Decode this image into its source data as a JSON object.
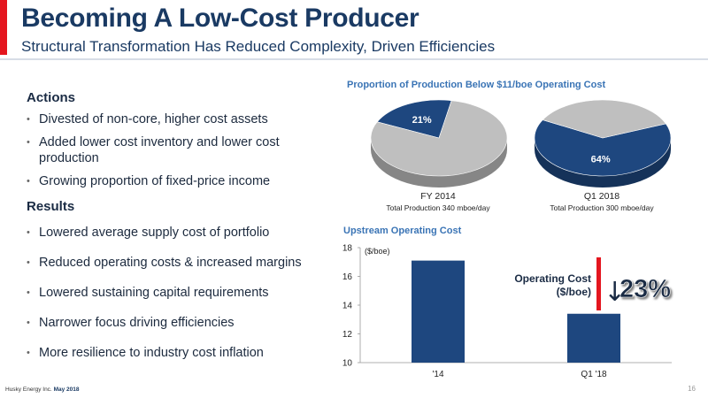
{
  "slide": {
    "title": "Becoming A Low-Cost Producer",
    "subtitle": "Structural Transformation Has Reduced Complexity, Driven Efficiencies",
    "footer_company": "Husky Energy Inc.",
    "footer_date": "May 2018",
    "page_number": "16"
  },
  "actions": {
    "heading": "Actions",
    "items": [
      "Divested of non-core, higher cost assets",
      "Added lower cost inventory and lower cost production",
      "Growing proportion of fixed-price income"
    ]
  },
  "results": {
    "heading": "Results",
    "items": [
      "Lowered average supply cost of portfolio",
      "Reduced operating costs & increased margins",
      "Lowered sustaining capital requirements",
      "Narrower focus driving efficiencies",
      "More resilience to industry cost inflation"
    ]
  },
  "callout": {
    "label_line1": "Operating Cost",
    "label_line2": "($/boe)",
    "change": "23%",
    "arrow": "↓"
  },
  "colors": {
    "navy": "#1e477f",
    "grey": "#bfbfbf",
    "red": "#e4161f",
    "title_blue": "#1a3a63",
    "chart_title_blue": "#3a74b5"
  },
  "chart_data": [
    {
      "type": "pie",
      "title": "Proportion of Production Below $11/boe Operating Cost",
      "label": "FY 2014",
      "sublabel": "Total Production 340 mboe/day",
      "slices": [
        {
          "value": 21,
          "label": "21%",
          "color": "#1e477f"
        },
        {
          "value": 79,
          "label": "",
          "color": "#bfbfbf"
        }
      ]
    },
    {
      "type": "pie",
      "title": "",
      "label": "Q1 2018",
      "sublabel": "Total Production 300 mboe/day",
      "slices": [
        {
          "value": 64,
          "label": "64%",
          "color": "#1e477f"
        },
        {
          "value": 36,
          "label": "",
          "color": "#bfbfbf"
        }
      ]
    },
    {
      "type": "bar",
      "title": "Upstream Operating Cost",
      "ylabel": "($/boe)",
      "categories": [
        "'14",
        "Q1 '18"
      ],
      "values": [
        17.1,
        13.4
      ],
      "ylim": [
        10,
        18
      ],
      "yticks": [
        10,
        12,
        14,
        16,
        18
      ],
      "grid": false,
      "color": "#1e477f"
    }
  ]
}
